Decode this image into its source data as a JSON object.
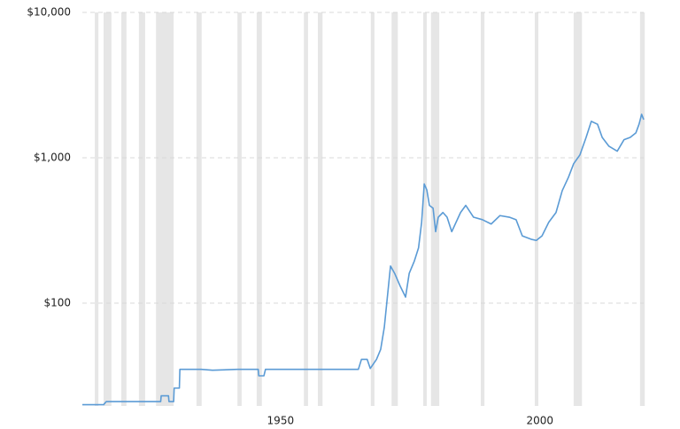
{
  "chart_data": {
    "type": "line",
    "log_y": true,
    "grid": true,
    "xlim": [
      1911.8,
      2020
    ],
    "ylim": [
      19.6,
      10000
    ],
    "xticks": [
      1950,
      2000
    ],
    "yticks": [
      {
        "value": 100,
        "label": "$100"
      },
      {
        "value": 1000,
        "label": "$1,000"
      },
      {
        "value": 10000,
        "label": "$10,000"
      }
    ],
    "shaded_ranges": [
      [
        1914.2,
        1914.9
      ],
      [
        1915.9,
        1917.4
      ],
      [
        1919.3,
        1920.3
      ],
      [
        1922.7,
        1923.9
      ],
      [
        1926.0,
        1929.4
      ],
      [
        1933.8,
        1934.8
      ],
      [
        1941.7,
        1942.5
      ],
      [
        1945.4,
        1946.4
      ],
      [
        1954.5,
        1955.3
      ],
      [
        1957.2,
        1958.1
      ],
      [
        1967.4,
        1968.1
      ],
      [
        1971.4,
        1972.6
      ],
      [
        1977.5,
        1978.2
      ],
      [
        1979.0,
        1980.6
      ],
      [
        1988.6,
        1989.3
      ],
      [
        1999.0,
        1999.7
      ],
      [
        2006.5,
        2008.1
      ],
      [
        2019.3,
        2020.2
      ]
    ],
    "shade_color": "#e6e6e6",
    "x": [
      1911.8,
      1915.9,
      1916.4,
      1926.9,
      1927.0,
      1928.4,
      1928.5,
      1929.4,
      1929.5,
      1930.5,
      1930.6,
      1934.7,
      1936.9,
      1941.7,
      1945.7,
      1945.8,
      1946.8,
      1947.1,
      1965.0,
      1965.6,
      1966.7,
      1967.3,
      1968.5,
      1969.3,
      1970.0,
      1970.5,
      1971.2,
      1972.0,
      1973.1,
      1974.1,
      1974.8,
      1975.8,
      1976.6,
      1977.2,
      1977.7,
      1978.2,
      1978.7,
      1979.4,
      1979.9,
      1980.4,
      1981.3,
      1982.1,
      1983.0,
      1984.7,
      1985.7,
      1987.2,
      1988.9,
      1990.6,
      1992.3,
      1994.1,
      1995.4,
      1996.6,
      1998.3,
      1999.3,
      2000.4,
      2001.7,
      2003.1,
      2004.3,
      2005.5,
      2006.5,
      2007.7,
      2008.9,
      2009.9,
      2011.1,
      2012.0,
      2013.3,
      2014.9,
      2016.2,
      2017.4,
      2018.5,
      2019.1,
      2019.6,
      2020.0
    ],
    "series": [
      {
        "color": "#5b9bd5",
        "values": [
          20,
          20,
          21,
          21,
          23,
          23,
          21,
          21,
          26,
          26,
          35,
          35,
          34.5,
          35,
          35,
          31.6,
          31.6,
          35,
          35,
          41,
          41,
          35.5,
          41,
          48,
          68,
          102,
          180,
          160,
          130,
          110,
          160,
          195,
          240,
          360,
          660,
          600,
          470,
          450,
          310,
          390,
          420,
          390,
          310,
          420,
          470,
          390,
          375,
          350,
          400,
          390,
          375,
          290,
          275,
          270,
          290,
          360,
          420,
          594,
          735,
          910,
          1045,
          1380,
          1780,
          1700,
          1380,
          1200,
          1110,
          1330,
          1380,
          1485,
          1700,
          1990,
          1830
        ]
      }
    ]
  }
}
